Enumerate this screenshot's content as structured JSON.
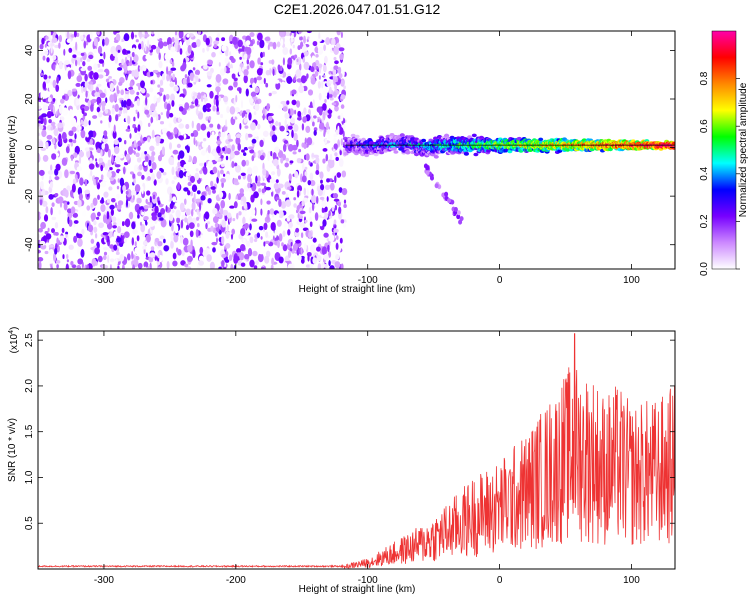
{
  "figure_title": "C2E1.2026.047.01.51.G12",
  "chart_data": [
    {
      "type": "heatmap",
      "title": "C2E1.2026.047.01.51.G12",
      "xlabel": "Height of straight line (km)",
      "ylabel": "Frequency (Hz)",
      "xlim": [
        -350,
        133
      ],
      "ylim": [
        -50,
        48
      ],
      "x_ticks": [
        -300,
        -200,
        -100,
        0,
        100
      ],
      "y_ticks": [
        -40,
        -20,
        0,
        20,
        40
      ],
      "colorbar": {
        "label": "Normalized spectral amplitude",
        "range": [
          0,
          1
        ],
        "ticks": [
          0.0,
          0.2,
          0.4,
          0.6,
          0.8
        ],
        "colors": [
          "#ffffff",
          "#cc88ff",
          "#7700ff",
          "#0000ff",
          "#00ffff",
          "#00ff00",
          "#ffff00",
          "#ff8800",
          "#ff0000",
          "#ff00aa"
        ]
      },
      "regions": [
        {
          "name": "noise",
          "x_range": [
            -350,
            -117
          ],
          "freq_range": [
            -50,
            48
          ],
          "amplitude": "low (0.0-0.2)"
        },
        {
          "name": "signal",
          "x_range": [
            -117,
            133
          ],
          "center_freq": 1,
          "amplitude": "high (0.5-1.0)"
        },
        {
          "name": "side-streak",
          "x_from": -60,
          "x_to": -25,
          "freq_from": -5,
          "freq_to": -33
        }
      ]
    },
    {
      "type": "line",
      "xlabel": "Height of straight line (km)",
      "ylabel": "SNR (10 * v/v)",
      "y_multiplier": "(x10",
      "y_multiplier_exp": "4",
      "xlim": [
        -350,
        133
      ],
      "ylim": [
        0,
        2.6
      ],
      "x_ticks": [
        -300,
        -200,
        -100,
        0,
        100
      ],
      "y_ticks": [
        "0.5",
        "1.0",
        "1.5",
        "2.0",
        "2.5"
      ],
      "series": [
        {
          "name": "SNR",
          "color": "#ee3333",
          "x": [
            -350,
            -300,
            -250,
            -200,
            -150,
            -120,
            -100,
            -80,
            -60,
            -40,
            -20,
            0,
            20,
            40,
            55,
            70,
            80,
            90,
            100,
            110,
            120,
            133
          ],
          "y": [
            0.03,
            0.03,
            0.03,
            0.03,
            0.03,
            0.03,
            0.1,
            0.25,
            0.4,
            0.6,
            0.85,
            1.0,
            1.25,
            1.6,
            1.9,
            1.8,
            1.6,
            1.7,
            1.5,
            1.55,
            1.55,
            1.7
          ],
          "peak": {
            "x": 57,
            "y": 2.57
          }
        }
      ]
    }
  ]
}
